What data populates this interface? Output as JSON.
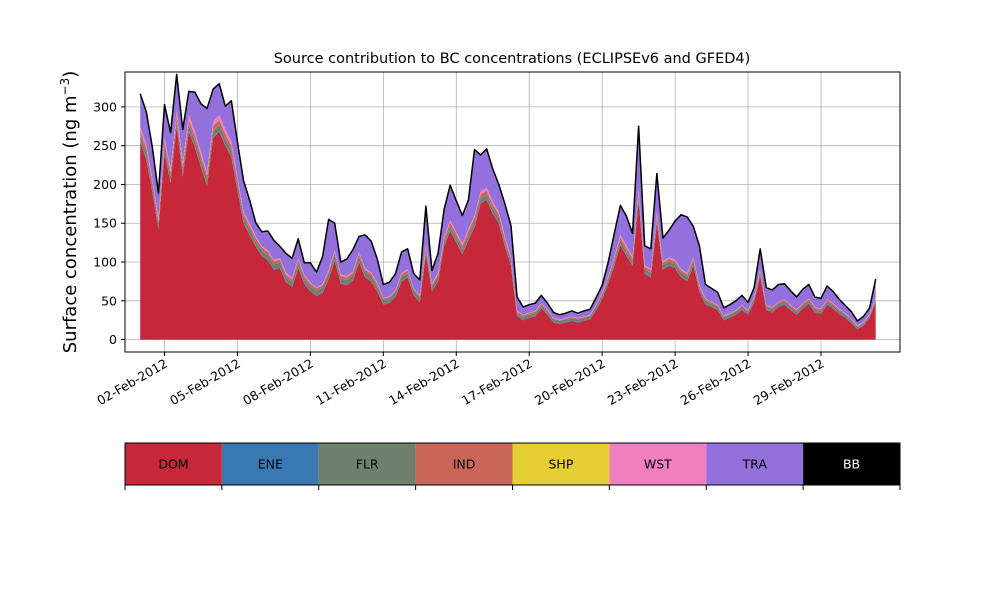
{
  "chart_data": {
    "type": "area",
    "stacked": true,
    "title": "Source contribution to BC concentrations (ECLIPSEv6 and GFED4)",
    "ylabel_main": "Surface concentration (ng m",
    "ylabel_sup": "−3",
    "ylabel_close": ")",
    "ylim": [
      -16,
      345
    ],
    "xlim": [
      "2012-01-31T09:00",
      "2012-03-03T06:00"
    ],
    "yticks": [
      0,
      50,
      100,
      150,
      200,
      250,
      300
    ],
    "xticks": [
      {
        "date": "2012-02-02",
        "label": "02-Feb-2012"
      },
      {
        "date": "2012-02-05",
        "label": "05-Feb-2012"
      },
      {
        "date": "2012-02-08",
        "label": "08-Feb-2012"
      },
      {
        "date": "2012-02-11",
        "label": "11-Feb-2012"
      },
      {
        "date": "2012-02-14",
        "label": "14-Feb-2012"
      },
      {
        "date": "2012-02-17",
        "label": "17-Feb-2012"
      },
      {
        "date": "2012-02-20",
        "label": "20-Feb-2012"
      },
      {
        "date": "2012-02-23",
        "label": "23-Feb-2012"
      },
      {
        "date": "2012-02-26",
        "label": "26-Feb-2012"
      },
      {
        "date": "2012-02-29",
        "label": "29-Feb-2012"
      }
    ],
    "grid": true,
    "legend_placement": "colorbar-below",
    "total_line_color": "#000000",
    "x": [
      "2012-02-01T00:00",
      "2012-02-01T06:00",
      "2012-02-01T12:00",
      "2012-02-01T18:00",
      "2012-02-02T00:00",
      "2012-02-02T06:00",
      "2012-02-02T12:00",
      "2012-02-02T18:00",
      "2012-02-03T00:00",
      "2012-02-03T06:00",
      "2012-02-03T12:00",
      "2012-02-03T18:00",
      "2012-02-04T00:00",
      "2012-02-04T06:00",
      "2012-02-04T12:00",
      "2012-02-04T18:00",
      "2012-02-05T00:00",
      "2012-02-05T06:00",
      "2012-02-05T12:00",
      "2012-02-05T18:00",
      "2012-02-06T00:00",
      "2012-02-06T06:00",
      "2012-02-06T12:00",
      "2012-02-06T18:00",
      "2012-02-07T00:00",
      "2012-02-07T06:00",
      "2012-02-07T12:00",
      "2012-02-07T18:00",
      "2012-02-08T00:00",
      "2012-02-08T06:00",
      "2012-02-08T12:00",
      "2012-02-08T18:00",
      "2012-02-09T00:00",
      "2012-02-09T06:00",
      "2012-02-09T12:00",
      "2012-02-09T18:00",
      "2012-02-10T00:00",
      "2012-02-10T06:00",
      "2012-02-10T12:00",
      "2012-02-10T18:00",
      "2012-02-11T00:00",
      "2012-02-11T06:00",
      "2012-02-11T12:00",
      "2012-02-11T18:00",
      "2012-02-12T00:00",
      "2012-02-12T06:00",
      "2012-02-12T12:00",
      "2012-02-12T18:00",
      "2012-02-13T00:00",
      "2012-02-13T06:00",
      "2012-02-13T12:00",
      "2012-02-13T18:00",
      "2012-02-14T00:00",
      "2012-02-14T06:00",
      "2012-02-14T12:00",
      "2012-02-14T18:00",
      "2012-02-15T00:00",
      "2012-02-15T06:00",
      "2012-02-15T12:00",
      "2012-02-15T18:00",
      "2012-02-16T00:00",
      "2012-02-16T06:00",
      "2012-02-16T12:00",
      "2012-02-16T18:00",
      "2012-02-17T00:00",
      "2012-02-17T06:00",
      "2012-02-17T12:00",
      "2012-02-17T18:00",
      "2012-02-18T00:00",
      "2012-02-18T06:00",
      "2012-02-18T12:00",
      "2012-02-18T18:00",
      "2012-02-19T00:00",
      "2012-02-19T06:00",
      "2012-02-19T12:00",
      "2012-02-19T18:00",
      "2012-02-20T00:00",
      "2012-02-20T06:00",
      "2012-02-20T12:00",
      "2012-02-20T18:00",
      "2012-02-21T00:00",
      "2012-02-21T06:00",
      "2012-02-21T12:00",
      "2012-02-21T18:00",
      "2012-02-22T00:00",
      "2012-02-22T06:00",
      "2012-02-22T12:00",
      "2012-02-22T18:00",
      "2012-02-23T00:00",
      "2012-02-23T06:00",
      "2012-02-23T12:00",
      "2012-02-23T18:00",
      "2012-02-24T00:00",
      "2012-02-24T06:00",
      "2012-02-24T12:00",
      "2012-02-24T18:00",
      "2012-02-25T00:00",
      "2012-02-25T06:00",
      "2012-02-25T12:00",
      "2012-02-25T18:00",
      "2012-02-26T00:00",
      "2012-02-26T06:00",
      "2012-02-26T12:00",
      "2012-02-26T18:00",
      "2012-02-27T00:00",
      "2012-02-27T06:00",
      "2012-02-27T12:00",
      "2012-02-27T18:00",
      "2012-02-28T00:00",
      "2012-02-28T06:00",
      "2012-02-28T12:00",
      "2012-02-28T18:00",
      "2012-02-29T00:00",
      "2012-02-29T06:00",
      "2012-02-29T12:00",
      "2012-02-29T18:00",
      "2012-03-01T00:00",
      "2012-03-01T06:00",
      "2012-03-01T12:00",
      "2012-03-01T18:00",
      "2012-03-02T00:00",
      "2012-03-02T06:00"
    ],
    "series": [
      {
        "name": "DOM",
        "color": "#c6283a",
        "values": [
          255,
          232,
          190,
          142,
          240,
          202,
          275,
          210,
          268,
          248,
          222,
          198,
          260,
          268,
          250,
          235,
          192,
          150,
          135,
          120,
          108,
          102,
          90,
          92,
          74,
          68,
          92,
          72,
          62,
          56,
          60,
          78,
          102,
          72,
          70,
          76,
          100,
          80,
          75,
          62,
          45,
          47,
          55,
          75,
          80,
          57,
          48,
          110,
          62,
          75,
          120,
          140,
          125,
          110,
          128,
          145,
          175,
          180,
          162,
          150,
          120,
          95,
          30,
          25,
          28,
          30,
          40,
          32,
          22,
          20,
          22,
          24,
          22,
          24,
          26,
          38,
          52,
          72,
          95,
          122,
          108,
          95,
          180,
          85,
          80,
          150,
          90,
          95,
          92,
          80,
          75,
          95,
          62,
          45,
          42,
          38,
          25,
          28,
          32,
          38,
          32,
          48,
          82,
          38,
          35,
          42,
          45,
          38,
          32,
          40,
          46,
          35,
          33,
          45,
          40,
          33,
          28,
          21,
          13,
          18,
          28,
          48
        ]
      },
      {
        "name": "ENE",
        "color": "#3a78b4",
        "values": [
          1,
          1,
          1,
          1,
          1,
          1,
          1,
          1,
          1,
          1,
          1,
          1,
          1,
          1,
          1,
          1,
          1,
          1,
          1,
          1,
          1,
          1,
          1,
          1,
          1,
          1,
          1,
          1,
          1,
          1,
          1,
          1,
          1,
          1,
          1,
          1,
          1,
          1,
          1,
          1,
          1,
          1,
          1,
          1,
          1,
          1,
          1,
          1,
          1,
          1,
          1,
          1,
          1,
          1,
          1,
          1,
          1,
          1,
          1,
          1,
          1,
          1,
          1,
          1,
          1,
          1,
          1,
          1,
          1,
          1,
          1,
          1,
          1,
          1,
          1,
          1,
          1,
          1,
          1,
          1,
          1,
          1,
          1,
          1,
          1,
          1,
          1,
          1,
          1,
          1,
          1,
          1,
          1,
          1,
          1,
          1,
          1,
          1,
          1,
          1,
          1,
          1,
          1,
          1,
          1,
          1,
          1,
          1,
          1,
          1,
          1,
          1,
          1,
          1,
          1,
          1,
          1,
          1,
          1,
          1,
          1,
          1
        ]
      },
      {
        "name": "FLR",
        "color": "#6e7f6e",
        "values": [
          8,
          8,
          8,
          7,
          8,
          8,
          8,
          8,
          8,
          8,
          8,
          8,
          8,
          8,
          8,
          8,
          8,
          7,
          7,
          6,
          6,
          6,
          6,
          6,
          6,
          6,
          6,
          6,
          6,
          6,
          6,
          6,
          6,
          6,
          6,
          6,
          6,
          6,
          6,
          6,
          5,
          5,
          5,
          5,
          5,
          5,
          5,
          5,
          5,
          5,
          5,
          5,
          6,
          6,
          6,
          6,
          6,
          6,
          6,
          6,
          5,
          5,
          3,
          3,
          3,
          3,
          3,
          3,
          3,
          3,
          3,
          3,
          3,
          3,
          3,
          3,
          4,
          4,
          5,
          5,
          5,
          5,
          5,
          5,
          5,
          5,
          5,
          5,
          5,
          5,
          5,
          5,
          4,
          4,
          3,
          3,
          3,
          3,
          3,
          3,
          3,
          3,
          4,
          3,
          3,
          3,
          3,
          3,
          3,
          3,
          3,
          3,
          3,
          3,
          3,
          3,
          3,
          3,
          2,
          2,
          2,
          3
        ]
      },
      {
        "name": "IND",
        "color": "#c9665a",
        "values": [
          6,
          6,
          5,
          4,
          6,
          5,
          6,
          5,
          6,
          6,
          6,
          5,
          6,
          6,
          6,
          6,
          5,
          4,
          4,
          4,
          4,
          4,
          4,
          4,
          3,
          3,
          4,
          3,
          3,
          3,
          3,
          3,
          4,
          3,
          3,
          3,
          4,
          3,
          3,
          3,
          2,
          2,
          2,
          3,
          3,
          2,
          2,
          4,
          3,
          3,
          4,
          5,
          4,
          4,
          5,
          5,
          5,
          5,
          5,
          5,
          4,
          4,
          2,
          2,
          2,
          2,
          2,
          2,
          1,
          1,
          1,
          1,
          1,
          1,
          1,
          2,
          2,
          3,
          4,
          4,
          4,
          4,
          5,
          3,
          3,
          5,
          3,
          3,
          3,
          3,
          3,
          3,
          2,
          2,
          2,
          2,
          1,
          1,
          1,
          2,
          1,
          2,
          3,
          2,
          2,
          2,
          2,
          2,
          2,
          2,
          2,
          2,
          2,
          2,
          2,
          2,
          1,
          1,
          1,
          1,
          1,
          2
        ]
      },
      {
        "name": "SHP",
        "color": "#e6cf34",
        "values": [
          0,
          0,
          0,
          0,
          0,
          0,
          0,
          0,
          0,
          0,
          0,
          0,
          0,
          0,
          0,
          0,
          0,
          0,
          0,
          0,
          0,
          0,
          0,
          0,
          0,
          0,
          0,
          0,
          0,
          0,
          0,
          0,
          0,
          0,
          0,
          0,
          0,
          0,
          0,
          0,
          0,
          0,
          0,
          0,
          0,
          0,
          0,
          0,
          0,
          0,
          0,
          0,
          0,
          0,
          0,
          0,
          0,
          0,
          0,
          0,
          0,
          0,
          0,
          0,
          0,
          0,
          0,
          0,
          0,
          0,
          0,
          0,
          0,
          0,
          0,
          0,
          0,
          0,
          0,
          0,
          0,
          0,
          0,
          0,
          0,
          0,
          0,
          0,
          0,
          0,
          0,
          0,
          0,
          0,
          0,
          0,
          0,
          0,
          0,
          0,
          0,
          0,
          0,
          0,
          0,
          0,
          0,
          0,
          0,
          0,
          0,
          0,
          0,
          0,
          0,
          0,
          0,
          0,
          0,
          0,
          0,
          0
        ]
      },
      {
        "name": "WST",
        "color": "#f07fbf",
        "values": [
          5,
          5,
          4,
          3,
          6,
          5,
          7,
          5,
          7,
          6,
          5,
          4,
          6,
          7,
          6,
          6,
          4,
          3,
          3,
          2,
          2,
          2,
          2,
          2,
          2,
          2,
          2,
          2,
          2,
          1,
          2,
          2,
          2,
          2,
          2,
          2,
          2,
          2,
          2,
          2,
          1,
          1,
          1,
          2,
          2,
          1,
          1,
          3,
          2,
          2,
          3,
          3,
          3,
          3,
          3,
          3,
          4,
          4,
          4,
          3,
          3,
          2,
          1,
          1,
          1,
          1,
          1,
          1,
          1,
          1,
          1,
          1,
          1,
          1,
          1,
          1,
          1,
          2,
          2,
          3,
          3,
          2,
          4,
          2,
          2,
          3,
          2,
          2,
          2,
          2,
          2,
          2,
          2,
          1,
          1,
          1,
          1,
          1,
          1,
          1,
          1,
          1,
          2,
          1,
          1,
          1,
          1,
          1,
          1,
          1,
          1,
          1,
          1,
          1,
          1,
          1,
          1,
          1,
          1,
          1,
          1,
          1
        ]
      },
      {
        "name": "TRA",
        "color": "#9370db",
        "values": [
          42,
          42,
          40,
          32,
          42,
          46,
          45,
          42,
          30,
          50,
          62,
          82,
          42,
          40,
          30,
          52,
          45,
          40,
          30,
          18,
          18,
          25,
          25,
          15,
          25,
          25,
          25,
          15,
          25,
          20,
          35,
          65,
          35,
          16,
          22,
          28,
          20,
          43,
          40,
          30,
          17,
          18,
          21,
          27,
          26,
          19,
          20,
          49,
          16,
          25,
          35,
          45,
          40,
          36,
          37,
          85,
          47,
          50,
          42,
          35,
          42,
          40,
          18,
          10,
          10,
          10,
          10,
          8,
          7,
          6,
          6,
          7,
          6,
          7,
          7,
          9,
          10,
          18,
          30,
          38,
          38,
          30,
          80,
          25,
          26,
          50,
          30,
          35,
          50,
          70,
          72,
          40,
          50,
          18,
          17,
          16,
          10,
          11,
          12,
          12,
          10,
          12,
          25,
          22,
          22,
          22,
          20,
          18,
          16,
          18,
          18,
          13,
          13,
          17,
          15,
          12,
          10,
          9,
          6,
          7,
          8,
          23
        ]
      },
      {
        "name": "BB",
        "color": "#000000",
        "values": [
          0,
          0,
          0,
          0,
          0,
          0,
          0,
          0,
          0,
          0,
          0,
          0,
          0,
          0,
          0,
          0,
          0,
          0,
          0,
          0,
          0,
          0,
          0,
          0,
          0,
          0,
          0,
          0,
          0,
          0,
          0,
          0,
          0,
          0,
          0,
          0,
          0,
          0,
          0,
          0,
          0,
          0,
          0,
          0,
          0,
          0,
          0,
          0,
          0,
          0,
          0,
          0,
          0,
          0,
          0,
          0,
          0,
          0,
          0,
          0,
          0,
          0,
          0,
          0,
          0,
          0,
          0,
          0,
          0,
          0,
          0,
          0,
          0,
          0,
          0,
          0,
          0,
          0,
          0,
          0,
          0,
          0,
          0,
          0,
          0,
          0,
          0,
          0,
          0,
          0,
          0,
          0,
          0,
          0,
          0,
          0,
          0,
          0,
          0,
          0,
          0,
          0,
          0,
          0,
          0,
          0,
          0,
          0,
          0,
          0,
          0,
          0,
          0,
          0,
          0,
          0,
          0,
          0,
          0,
          0,
          0,
          0
        ]
      }
    ]
  }
}
